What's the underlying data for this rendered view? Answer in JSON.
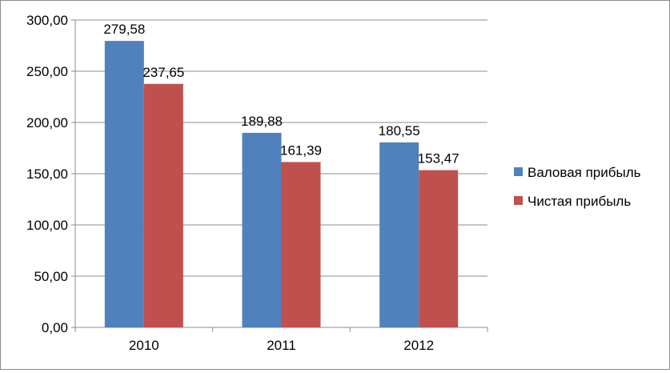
{
  "chart_data": {
    "type": "bar",
    "categories": [
      "2010",
      "2011",
      "2012"
    ],
    "series": [
      {
        "name": "Валовая прибыль",
        "values": [
          279.58,
          189.88,
          180.55
        ],
        "labels": [
          "279,58",
          "189,88",
          "180,55"
        ],
        "color": "#4f81bd"
      },
      {
        "name": "Чистая прибыль",
        "values": [
          237.65,
          161.39,
          153.47
        ],
        "labels": [
          "237,65",
          "161,39",
          "153,47"
        ],
        "color": "#c0504d"
      }
    ],
    "y_ticks": [
      "0,00",
      "50,00",
      "100,00",
      "150,00",
      "200,00",
      "250,00",
      "300,00"
    ],
    "ylim": [
      0,
      300
    ],
    "grid": true,
    "legend_position": "right",
    "title": "",
    "xlabel": "",
    "ylabel": ""
  }
}
